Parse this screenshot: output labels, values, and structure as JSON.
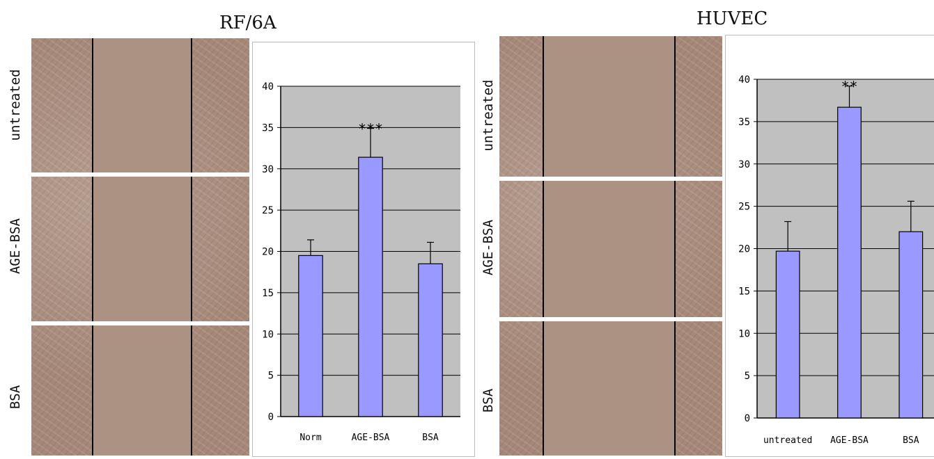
{
  "panels": [
    {
      "title": "RF/6A",
      "row_labels": [
        "untreated",
        "AGE-BSA",
        "BSA"
      ]
    },
    {
      "title": "HUVEC",
      "row_labels": [
        "untreated",
        "AGE-BSA",
        "BSA"
      ]
    }
  ],
  "chart_data": [
    {
      "type": "bar",
      "categories": [
        "Norm",
        "AGE-BSA",
        "BSA"
      ],
      "values": [
        19.5,
        31.4,
        18.5
      ],
      "errors": [
        1.9,
        3.5,
        2.6
      ],
      "annotations": [
        "",
        "***",
        ""
      ],
      "ylim": [
        0,
        40
      ],
      "yticks": [
        0,
        5,
        10,
        15,
        20,
        25,
        30,
        35,
        40
      ],
      "grid": true,
      "bar_color": "#9999ff",
      "plot_bg": "#c0c0c0"
    },
    {
      "type": "bar",
      "categories": [
        "untreated",
        "AGE-BSA",
        "BSA"
      ],
      "values": [
        19.7,
        36.7,
        22.0
      ],
      "errors": [
        3.5,
        2.5,
        3.6
      ],
      "annotations": [
        "",
        "**",
        ""
      ],
      "ylim": [
        0,
        40
      ],
      "yticks": [
        0,
        5,
        10,
        15,
        20,
        25,
        30,
        35,
        40
      ],
      "grid": true,
      "bar_color": "#9999ff",
      "plot_bg": "#c0c0c0"
    }
  ]
}
